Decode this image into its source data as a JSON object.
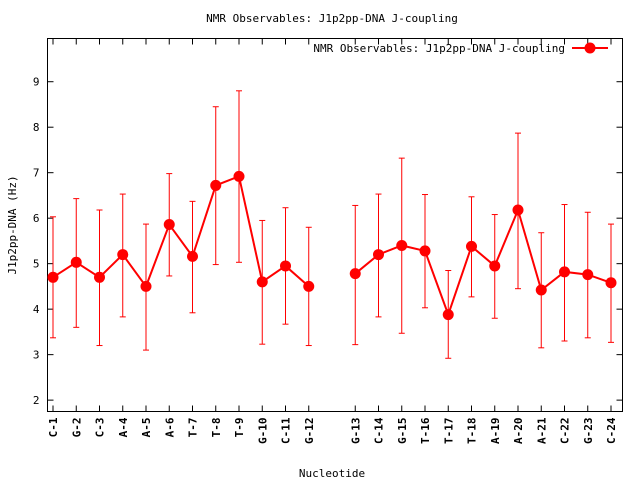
{
  "chart_data": {
    "type": "line",
    "title": "NMR Observables: J1p2pp-DNA J-coupling",
    "xlabel": "Nucleotide",
    "ylabel": "J1p2pp-DNA (Hz)",
    "ylim": [
      1.75,
      9.95
    ],
    "yticks": [
      2,
      3,
      4,
      5,
      6,
      7,
      8,
      9
    ],
    "grid": false,
    "legend_position": "top-right",
    "color": "#ff0000",
    "categories": [
      "C-1",
      "G-2",
      "C-3",
      "A-4",
      "A-5",
      "A-6",
      "T-7",
      "T-8",
      "T-9",
      "G-10",
      "C-11",
      "G-12",
      "",
      "G-13",
      "C-14",
      "G-15",
      "T-16",
      "T-17",
      "T-18",
      "A-19",
      "A-20",
      "A-21",
      "C-22",
      "G-23",
      "C-24"
    ],
    "series": [
      {
        "name": "NMR Observables: J1p2pp-DNA J-coupling",
        "values": [
          4.7,
          5.03,
          4.7,
          5.2,
          4.5,
          5.86,
          5.16,
          6.72,
          6.92,
          4.6,
          4.95,
          4.5,
          null,
          4.78,
          5.2,
          5.4,
          5.28,
          3.88,
          5.38,
          4.95,
          6.18,
          4.42,
          4.82,
          4.76,
          4.58
        ],
        "err_low": [
          3.37,
          3.6,
          3.2,
          3.83,
          3.1,
          4.73,
          3.92,
          4.98,
          5.03,
          3.23,
          3.67,
          3.2,
          null,
          3.22,
          3.83,
          3.47,
          4.03,
          2.92,
          4.27,
          3.8,
          4.45,
          3.15,
          3.3,
          3.37,
          3.27
        ],
        "err_high": [
          6.03,
          6.43,
          6.18,
          6.53,
          5.87,
          6.98,
          6.37,
          8.45,
          8.8,
          5.95,
          6.23,
          5.8,
          null,
          6.28,
          6.53,
          7.32,
          6.52,
          4.85,
          6.47,
          6.08,
          7.87,
          5.68,
          6.3,
          6.13,
          5.87
        ]
      }
    ]
  }
}
